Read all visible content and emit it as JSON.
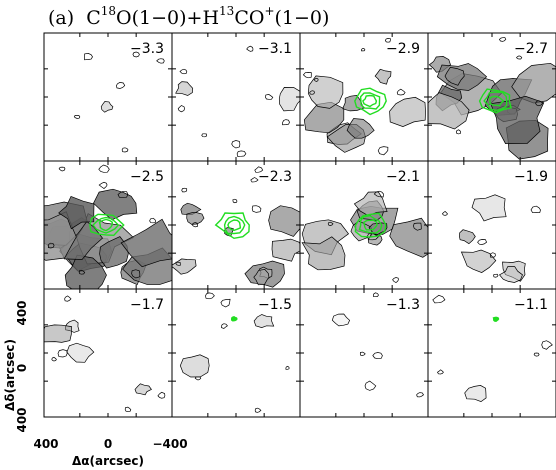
{
  "chart_data": {
    "type": "heatmap",
    "title": {
      "prefix": "(a)",
      "mol1": "C",
      "mol1_sup": "18",
      "mol1_rest": "O(1−0)+H",
      "mol2_sup": "13",
      "mol2_rest": "CO",
      "mol2_sup2": "+",
      "transition": "(1−0)"
    },
    "grid": {
      "rows": 3,
      "cols": 4
    },
    "xlabel": "Δα(arcsec)",
    "ylabel": "Δδ(arcsec)",
    "x_ticks": [
      "400",
      "0",
      "−400"
    ],
    "y_ticks": [
      "400",
      "0",
      "400"
    ],
    "xlim": [
      400,
      -400
    ],
    "ylim": [
      -400,
      400
    ],
    "colors": {
      "grayscale_emission": "#555555",
      "contour": "#000000",
      "overlay_contour": "#22dd22"
    },
    "panels": [
      {
        "velocity": "−3.3",
        "gray_level": 0.0,
        "green": false
      },
      {
        "velocity": "−3.1",
        "gray_level": 0.1,
        "green": false
      },
      {
        "velocity": "−2.9",
        "gray_level": 0.5,
        "green": true
      },
      {
        "velocity": "−2.7",
        "gray_level": 0.8,
        "green": true
      },
      {
        "velocity": "−2.5",
        "gray_level": 0.9,
        "green": true
      },
      {
        "velocity": "−2.3",
        "gray_level": 0.6,
        "green": true
      },
      {
        "velocity": "−2.1",
        "gray_level": 0.6,
        "green": true
      },
      {
        "velocity": "−1.9",
        "gray_level": 0.3,
        "green": false
      },
      {
        "velocity": "−1.7",
        "gray_level": 0.2,
        "green": false
      },
      {
        "velocity": "−1.5",
        "gray_level": 0.1,
        "green": true
      },
      {
        "velocity": "−1.3",
        "gray_level": 0.0,
        "green": false
      },
      {
        "velocity": "−1.1",
        "gray_level": 0.0,
        "green": true
      }
    ]
  }
}
